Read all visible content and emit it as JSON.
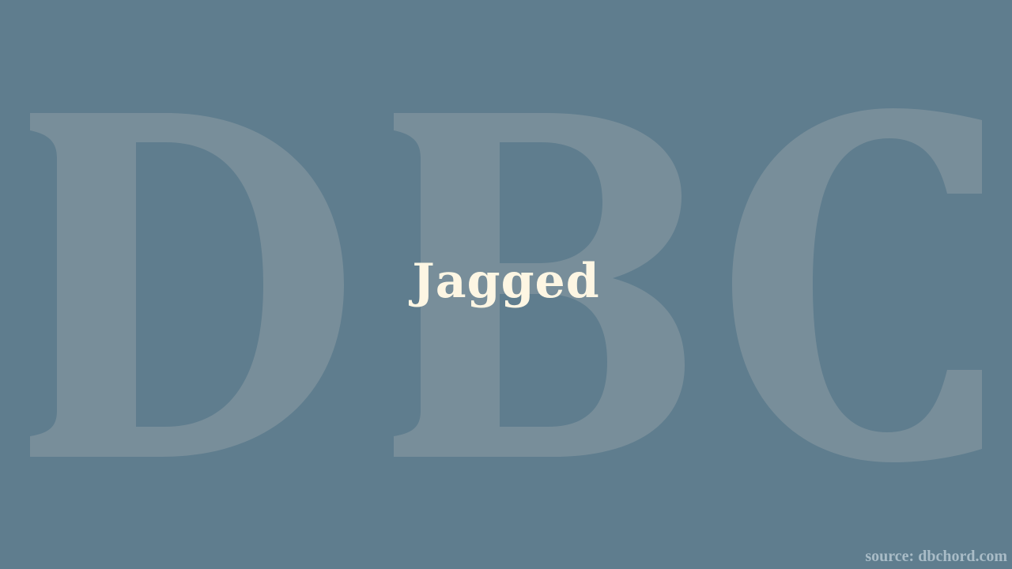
{
  "slide": {
    "title": "Jagged",
    "watermark_text": "DBC",
    "source": "source: dbchord.com"
  },
  "colors": {
    "background": "#5f7d8e",
    "watermark": "#788e9a",
    "title": "#fdf6e3",
    "source": "#a9bcc7"
  }
}
